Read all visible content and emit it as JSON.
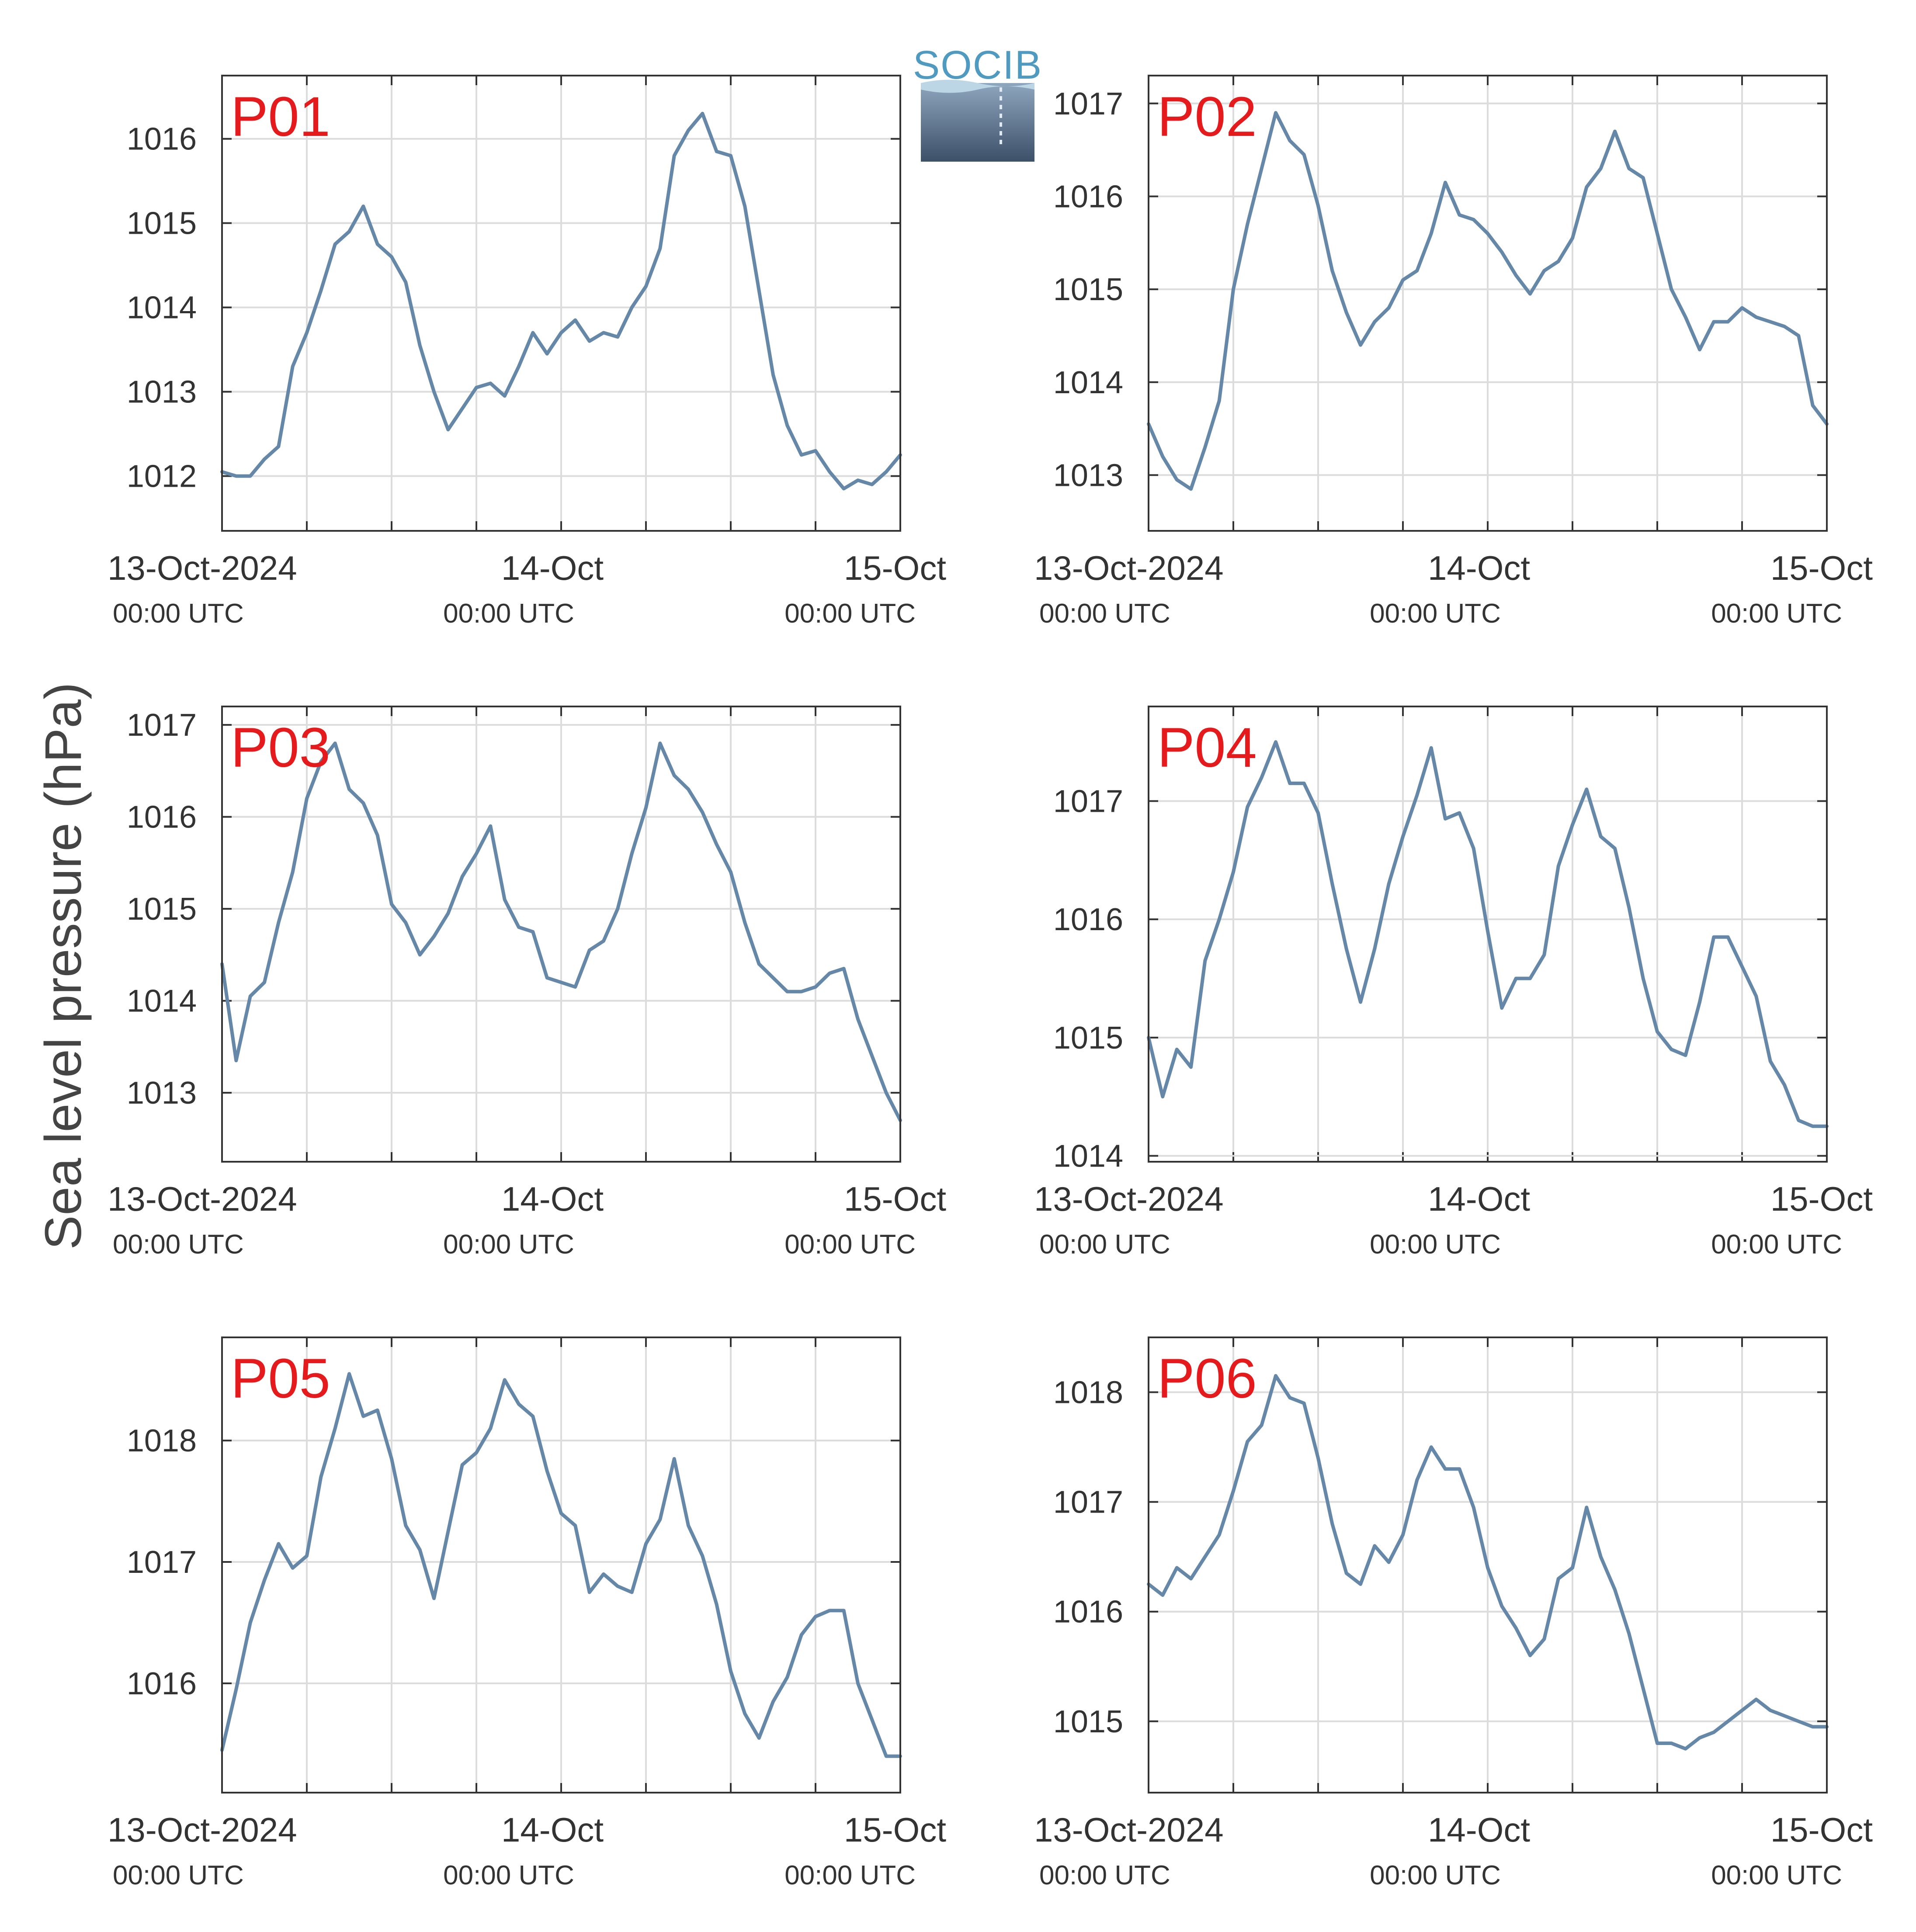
{
  "ylabel": "Sea level pressure (hPa)",
  "logo_text": "SOCIB",
  "colors": {
    "line": "#6688a8",
    "label": "#e41a1c",
    "grid": "#dcdcdc",
    "axis": "#333333"
  },
  "chart_data": [
    {
      "type": "line",
      "name": "P01",
      "ylim": [
        1011.35,
        1016.75
      ],
      "yticks": [
        1012,
        1013,
        1014,
        1015,
        1016
      ],
      "xlim": [
        0,
        48
      ],
      "xtick_labels": [
        {
          "x": 0,
          "date": "13-Oct-2024",
          "time": "00:00 UTC"
        },
        {
          "x": 24,
          "date": "14-Oct",
          "time": "00:00 UTC"
        },
        {
          "x": 48,
          "date": "15-Oct",
          "time": "00:00 UTC"
        }
      ],
      "x": [
        0,
        1,
        2,
        3,
        4,
        5,
        6,
        7,
        8,
        9,
        10,
        11,
        12,
        13,
        14,
        15,
        16,
        17,
        18,
        19,
        20,
        21,
        22,
        23,
        24,
        25,
        26,
        27,
        28,
        29,
        30,
        31,
        32,
        33,
        34,
        35,
        36,
        37,
        38,
        39,
        40,
        41,
        42,
        43,
        44,
        45,
        46,
        47,
        48
      ],
      "y": [
        1012.05,
        1012.0,
        1012.0,
        1012.2,
        1012.35,
        1013.3,
        1013.7,
        1014.2,
        1014.75,
        1014.9,
        1015.2,
        1014.75,
        1014.6,
        1014.3,
        1013.55,
        1013.0,
        1012.55,
        1012.8,
        1013.05,
        1013.1,
        1012.95,
        1013.3,
        1013.7,
        1013.45,
        1013.7,
        1013.85,
        1013.6,
        1013.7,
        1013.65,
        1014.0,
        1014.25,
        1014.7,
        1015.8,
        1016.1,
        1016.3,
        1015.85,
        1015.8,
        1015.2,
        1014.2,
        1013.2,
        1012.6,
        1012.25,
        1012.3,
        1012.05,
        1011.85,
        1011.95,
        1011.9,
        1012.05,
        1012.25
      ]
    },
    {
      "type": "line",
      "name": "P02",
      "ylim": [
        1012.4,
        1017.3
      ],
      "yticks": [
        1013,
        1014,
        1015,
        1016,
        1017
      ],
      "xlim": [
        0,
        48
      ],
      "xtick_labels": [
        {
          "x": 0,
          "date": "13-Oct-2024",
          "time": "00:00 UTC"
        },
        {
          "x": 24,
          "date": "14-Oct",
          "time": "00:00 UTC"
        },
        {
          "x": 48,
          "date": "15-Oct",
          "time": "00:00 UTC"
        }
      ],
      "x": [
        0,
        1,
        2,
        3,
        4,
        5,
        6,
        7,
        8,
        9,
        10,
        11,
        12,
        13,
        14,
        15,
        16,
        17,
        18,
        19,
        20,
        21,
        22,
        23,
        24,
        25,
        26,
        27,
        28,
        29,
        30,
        31,
        32,
        33,
        34,
        35,
        36,
        37,
        38,
        39,
        40,
        41,
        42,
        43,
        44,
        45,
        46,
        47,
        48
      ],
      "y": [
        1013.55,
        1013.2,
        1012.95,
        1012.85,
        1013.3,
        1013.8,
        1015.0,
        1015.7,
        1016.3,
        1016.9,
        1016.6,
        1016.45,
        1015.9,
        1015.2,
        1014.75,
        1014.4,
        1014.65,
        1014.8,
        1015.1,
        1015.2,
        1015.6,
        1016.15,
        1015.8,
        1015.75,
        1015.6,
        1015.4,
        1015.15,
        1014.95,
        1015.2,
        1015.3,
        1015.55,
        1016.1,
        1016.3,
        1016.7,
        1016.3,
        1016.2,
        1015.6,
        1015.0,
        1014.7,
        1014.35,
        1014.65,
        1014.65,
        1014.8,
        1014.7,
        1014.65,
        1014.6,
        1014.5,
        1013.75,
        1013.55
      ]
    },
    {
      "type": "line",
      "name": "P03",
      "ylim": [
        1012.25,
        1017.2
      ],
      "yticks": [
        1013,
        1014,
        1015,
        1016,
        1017
      ],
      "xlim": [
        0,
        48
      ],
      "xtick_labels": [
        {
          "x": 0,
          "date": "13-Oct-2024",
          "time": "00:00 UTC"
        },
        {
          "x": 24,
          "date": "14-Oct",
          "time": "00:00 UTC"
        },
        {
          "x": 48,
          "date": "15-Oct",
          "time": "00:00 UTC"
        }
      ],
      "x": [
        0,
        1,
        2,
        3,
        4,
        5,
        6,
        7,
        8,
        9,
        10,
        11,
        12,
        13,
        14,
        15,
        16,
        17,
        18,
        19,
        20,
        21,
        22,
        23,
        24,
        25,
        26,
        27,
        28,
        29,
        30,
        31,
        32,
        33,
        34,
        35,
        36,
        37,
        38,
        39,
        40,
        41,
        42,
        43,
        44,
        45,
        46,
        47,
        48
      ],
      "y": [
        1014.4,
        1013.35,
        1014.05,
        1014.2,
        1014.85,
        1015.4,
        1016.2,
        1016.6,
        1016.8,
        1016.3,
        1016.15,
        1015.8,
        1015.05,
        1014.85,
        1014.5,
        1014.7,
        1014.95,
        1015.35,
        1015.6,
        1015.9,
        1015.1,
        1014.8,
        1014.75,
        1014.25,
        1014.2,
        1014.15,
        1014.55,
        1014.65,
        1015.0,
        1015.6,
        1016.1,
        1016.8,
        1016.45,
        1016.3,
        1016.05,
        1015.7,
        1015.4,
        1014.85,
        1014.4,
        1014.25,
        1014.1,
        1014.1,
        1014.15,
        1014.3,
        1014.35,
        1013.8,
        1013.4,
        1013.0,
        1012.7
      ]
    },
    {
      "type": "line",
      "name": "P04",
      "ylim": [
        1013.95,
        1017.8
      ],
      "yticks": [
        1014,
        1015,
        1016,
        1017
      ],
      "xlim": [
        0,
        48
      ],
      "xtick_labels": [
        {
          "x": 0,
          "date": "13-Oct-2024",
          "time": "00:00 UTC"
        },
        {
          "x": 24,
          "date": "14-Oct",
          "time": "00:00 UTC"
        },
        {
          "x": 48,
          "date": "15-Oct",
          "time": "00:00 UTC"
        }
      ],
      "x": [
        0,
        1,
        2,
        3,
        4,
        5,
        6,
        7,
        8,
        9,
        10,
        11,
        12,
        13,
        14,
        15,
        16,
        17,
        18,
        19,
        20,
        21,
        22,
        23,
        24,
        25,
        26,
        27,
        28,
        29,
        30,
        31,
        32,
        33,
        34,
        35,
        36,
        37,
        38,
        39,
        40,
        41,
        42,
        43,
        44,
        45,
        46,
        47,
        48
      ],
      "y": [
        1015.0,
        1014.5,
        1014.9,
        1014.75,
        1015.65,
        1016.0,
        1016.4,
        1016.95,
        1017.2,
        1017.5,
        1017.15,
        1017.15,
        1016.9,
        1016.3,
        1015.75,
        1015.3,
        1015.75,
        1016.3,
        1016.7,
        1017.05,
        1017.45,
        1016.85,
        1016.9,
        1016.6,
        1015.9,
        1015.25,
        1015.5,
        1015.5,
        1015.7,
        1016.45,
        1016.8,
        1017.1,
        1016.7,
        1016.6,
        1016.1,
        1015.5,
        1015.05,
        1014.9,
        1014.85,
        1015.3,
        1015.85,
        1015.85,
        1015.6,
        1015.35,
        1014.8,
        1014.6,
        1014.3,
        1014.25,
        1014.25
      ]
    },
    {
      "type": "line",
      "name": "P05",
      "ylim": [
        1015.1,
        1018.85
      ],
      "yticks": [
        1016,
        1017,
        1018
      ],
      "xlim": [
        0,
        48
      ],
      "xtick_labels": [
        {
          "x": 0,
          "date": "13-Oct-2024",
          "time": "00:00 UTC"
        },
        {
          "x": 24,
          "date": "14-Oct",
          "time": "00:00 UTC"
        },
        {
          "x": 48,
          "date": "15-Oct",
          "time": "00:00 UTC"
        }
      ],
      "x": [
        0,
        1,
        2,
        3,
        4,
        5,
        6,
        7,
        8,
        9,
        10,
        11,
        12,
        13,
        14,
        15,
        16,
        17,
        18,
        19,
        20,
        21,
        22,
        23,
        24,
        25,
        26,
        27,
        28,
        29,
        30,
        31,
        32,
        33,
        34,
        35,
        36,
        37,
        38,
        39,
        40,
        41,
        42,
        43,
        44,
        45,
        46,
        47,
        48
      ],
      "y": [
        1015.45,
        1015.95,
        1016.5,
        1016.85,
        1017.15,
        1016.95,
        1017.05,
        1017.7,
        1018.1,
        1018.55,
        1018.2,
        1018.25,
        1017.85,
        1017.3,
        1017.1,
        1016.7,
        1017.25,
        1017.8,
        1017.9,
        1018.1,
        1018.5,
        1018.3,
        1018.2,
        1017.75,
        1017.4,
        1017.3,
        1016.75,
        1016.9,
        1016.8,
        1016.75,
        1017.15,
        1017.35,
        1017.85,
        1017.3,
        1017.05,
        1016.65,
        1016.1,
        1015.75,
        1015.55,
        1015.85,
        1016.05,
        1016.4,
        1016.55,
        1016.6,
        1016.6,
        1016.0,
        1015.7,
        1015.4,
        1015.4
      ]
    },
    {
      "type": "line",
      "name": "P06",
      "ylim": [
        1014.35,
        1018.5
      ],
      "yticks": [
        1015,
        1016,
        1017,
        1018
      ],
      "xlim": [
        0,
        48
      ],
      "xtick_labels": [
        {
          "x": 0,
          "date": "13-Oct-2024",
          "time": "00:00 UTC"
        },
        {
          "x": 24,
          "date": "14-Oct",
          "time": "00:00 UTC"
        },
        {
          "x": 48,
          "date": "15-Oct",
          "time": "00:00 UTC"
        }
      ],
      "x": [
        0,
        1,
        2,
        3,
        4,
        5,
        6,
        7,
        8,
        9,
        10,
        11,
        12,
        13,
        14,
        15,
        16,
        17,
        18,
        19,
        20,
        21,
        22,
        23,
        24,
        25,
        26,
        27,
        28,
        29,
        30,
        31,
        32,
        33,
        34,
        35,
        36,
        37,
        38,
        39,
        40,
        41,
        42,
        43,
        44,
        45,
        46,
        47,
        48
      ],
      "y": [
        1016.25,
        1016.15,
        1016.4,
        1016.3,
        1016.5,
        1016.7,
        1017.1,
        1017.55,
        1017.7,
        1018.15,
        1017.95,
        1017.9,
        1017.4,
        1016.8,
        1016.35,
        1016.25,
        1016.6,
        1016.45,
        1016.7,
        1017.2,
        1017.5,
        1017.3,
        1017.3,
        1016.95,
        1016.4,
        1016.05,
        1015.85,
        1015.6,
        1015.75,
        1016.3,
        1016.4,
        1016.95,
        1016.5,
        1016.2,
        1015.8,
        1015.3,
        1014.8,
        1014.8,
        1014.75,
        1014.85,
        1014.9,
        1015.0,
        1015.1,
        1015.2,
        1015.1,
        1015.05,
        1015.0,
        1014.95,
        1014.95
      ]
    }
  ]
}
